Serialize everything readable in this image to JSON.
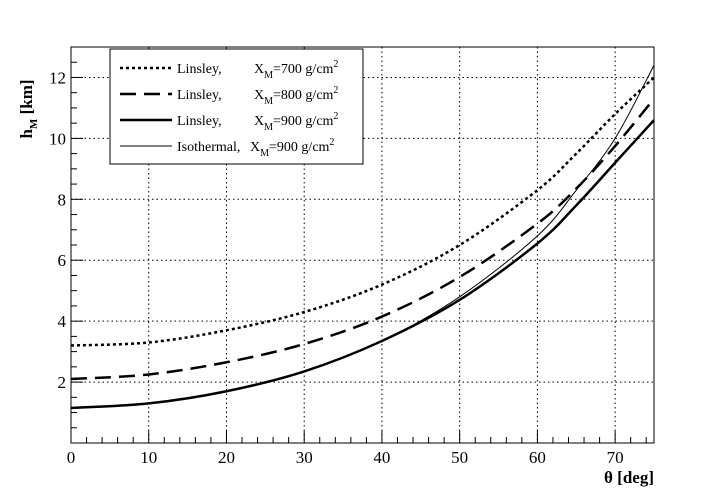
{
  "chart_data": {
    "type": "line",
    "xlabel": "θ [deg]",
    "ylabel_main": "h",
    "ylabel_sub": "M",
    "ylabel_unit": " [km]",
    "xlim": [
      0,
      75
    ],
    "ylim": [
      0,
      13
    ],
    "xticks": [
      0,
      10,
      20,
      30,
      40,
      50,
      60,
      70
    ],
    "yticks": [
      2,
      4,
      6,
      8,
      10,
      12
    ],
    "grid": true,
    "legend_position": "top-left",
    "series": [
      {
        "name": "Linsley,",
        "legend_xm_label": "X",
        "legend_xm_sub": "M",
        "legend_value": "=700 g/cm",
        "legend_sup": "2",
        "style": "dotted",
        "x": [
          0,
          10,
          20,
          30,
          40,
          50,
          60,
          65,
          70,
          75
        ],
        "y": [
          3.2,
          3.3,
          3.7,
          4.3,
          5.2,
          6.5,
          8.3,
          9.5,
          10.8,
          12.0
        ]
      },
      {
        "name": "Linsley,",
        "legend_xm_label": "X",
        "legend_xm_sub": "M",
        "legend_value": "=800 g/cm",
        "legend_sup": "2",
        "style": "dashed",
        "x": [
          0,
          10,
          20,
          30,
          40,
          50,
          60,
          65,
          70,
          75
        ],
        "y": [
          2.1,
          2.25,
          2.65,
          3.25,
          4.15,
          5.45,
          7.2,
          8.35,
          9.75,
          11.3
        ]
      },
      {
        "name": "Linsley,",
        "legend_xm_label": "X",
        "legend_xm_sub": "M",
        "legend_value": "=900 g/cm",
        "legend_sup": "2",
        "style": "thick",
        "x": [
          0,
          10,
          20,
          30,
          40,
          50,
          60,
          65,
          70,
          75
        ],
        "y": [
          1.15,
          1.3,
          1.7,
          2.35,
          3.35,
          4.7,
          6.55,
          7.8,
          9.2,
          10.6
        ]
      },
      {
        "name": "Isothermal,",
        "legend_xm_label": "X",
        "legend_xm_sub": "M",
        "legend_value": "=900 g/cm",
        "legend_sup": "2",
        "style": "thin",
        "x": [
          0,
          10,
          20,
          30,
          40,
          50,
          60,
          65,
          70,
          75
        ],
        "y": [
          1.15,
          1.3,
          1.7,
          2.35,
          3.35,
          4.8,
          6.8,
          8.3,
          10.0,
          12.4
        ]
      }
    ]
  }
}
